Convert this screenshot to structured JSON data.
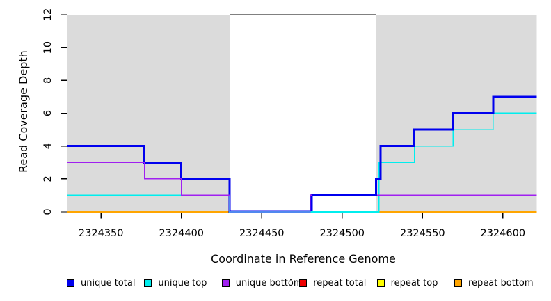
{
  "chart_data": {
    "type": "step-line",
    "title": "",
    "xlabel": "Coordinate in Reference Genome",
    "ylabel": "Read Coverage Depth",
    "xlim": [
      2324329,
      2324621
    ],
    "ylim": [
      0,
      12
    ],
    "x_ticks": [
      2324350,
      2324400,
      2324450,
      2324500,
      2324550,
      2324600
    ],
    "y_ticks": [
      0,
      2,
      4,
      6,
      8,
      10,
      12
    ],
    "grid": false,
    "background_regions": {
      "color": "#DBDBDB",
      "regions": [
        [
          2324329,
          2324430
        ],
        [
          2324521,
          2324621
        ]
      ]
    },
    "gap_top_line": {
      "value": 12,
      "from": 2324430,
      "to": 2324521,
      "color": "#000000"
    },
    "series": [
      {
        "name": "repeat total",
        "color": "#EE0000",
        "width": 1.4,
        "points": [
          [
            2324329,
            0
          ],
          [
            2324621,
            0
          ]
        ]
      },
      {
        "name": "repeat top",
        "color": "#FFFF00",
        "width": 1.4,
        "points": [
          [
            2324329,
            0
          ],
          [
            2324621,
            0
          ]
        ]
      },
      {
        "name": "repeat bottom",
        "color": "#FFA500",
        "width": 1.7,
        "points": [
          [
            2324329,
            0
          ],
          [
            2324621,
            0
          ]
        ]
      },
      {
        "name": "unique total",
        "color": "#0000EE",
        "width": 3,
        "points": [
          [
            2324329,
            4
          ],
          [
            2324377,
            3
          ],
          [
            2324400,
            2
          ],
          [
            2324430,
            0
          ],
          [
            2324481,
            1
          ],
          [
            2324521,
            2
          ],
          [
            2324524,
            4
          ],
          [
            2324545,
            5
          ],
          [
            2324569,
            6
          ],
          [
            2324594,
            7
          ],
          [
            2324621,
            7
          ]
        ]
      },
      {
        "name": "unique top",
        "color": "#00EEEE",
        "width": 1.6,
        "points": [
          [
            2324329,
            1
          ],
          [
            2324430,
            0
          ],
          [
            2324523,
            3
          ],
          [
            2324545,
            4
          ],
          [
            2324569,
            5
          ],
          [
            2324594,
            6
          ],
          [
            2324621,
            6
          ]
        ]
      },
      {
        "name": "unique bottom",
        "color": "#A020F0",
        "width": 1.4,
        "points": [
          [
            2324329,
            3
          ],
          [
            2324377,
            2
          ],
          [
            2324400,
            1
          ],
          [
            2324430,
            0
          ],
          [
            2324480,
            1
          ],
          [
            2324621,
            1
          ]
        ]
      }
    ],
    "overdraw": {
      "series": "unique total",
      "from_x": 2324481
    },
    "legend": [
      {
        "label": "unique total",
        "color": "#0000EE"
      },
      {
        "label": "unique top",
        "color": "#00EEEE"
      },
      {
        "label": "unique bottom",
        "color": "#A020F0"
      },
      {
        "label": "repeat total",
        "color": "#EE0000"
      },
      {
        "label": "repeat top",
        "color": "#FFFF00"
      },
      {
        "label": "repeat bottom",
        "color": "#FFA500"
      }
    ],
    "legend_position": "bottom"
  }
}
